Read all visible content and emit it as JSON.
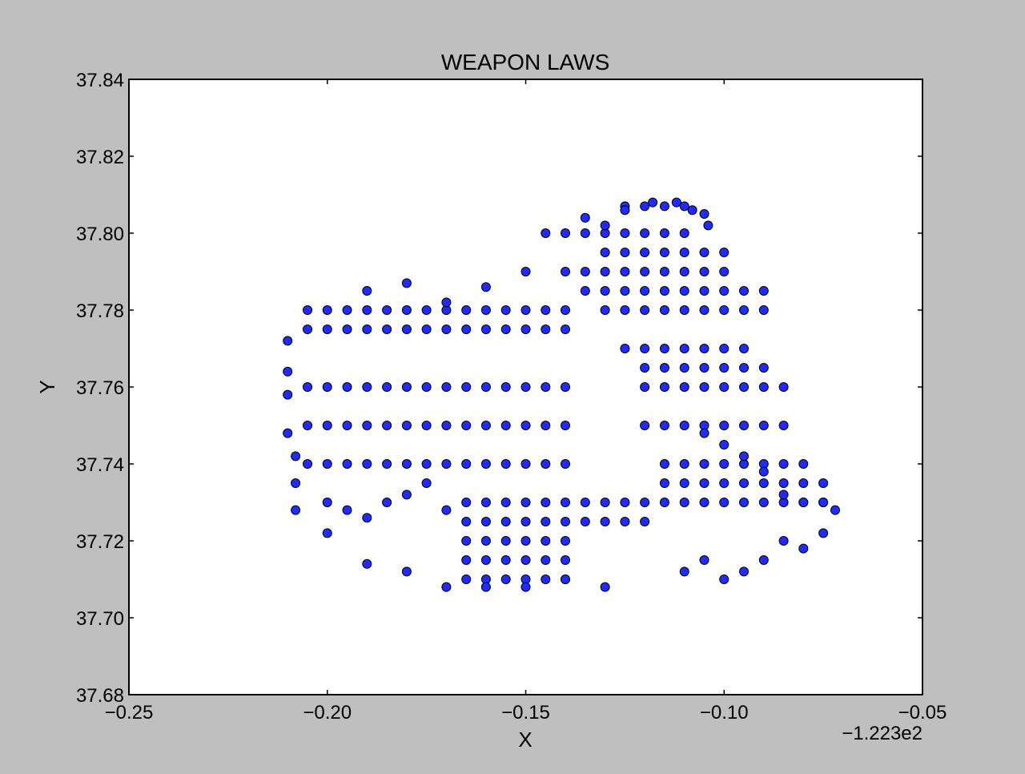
{
  "chart_data": {
    "type": "scatter",
    "title": "WEAPON LAWS",
    "xlabel": "X",
    "ylabel": "Y",
    "x_offset_label": "−1.223e2",
    "x_offset": -122.3,
    "xlim": [
      -0.25,
      -0.05
    ],
    "ylim": [
      37.68,
      37.84
    ],
    "x_ticks": [
      -0.25,
      -0.2,
      -0.15,
      -0.1,
      -0.05
    ],
    "x_tick_labels": [
      "−0.25",
      "−0.20",
      "−0.15",
      "−0.10",
      "−0.05"
    ],
    "y_ticks": [
      37.68,
      37.7,
      37.72,
      37.74,
      37.76,
      37.78,
      37.8,
      37.82,
      37.84
    ],
    "y_tick_labels": [
      "37.68",
      "37.70",
      "37.72",
      "37.74",
      "37.76",
      "37.78",
      "37.80",
      "37.82",
      "37.84"
    ],
    "grid": false,
    "marker_color": "#1f2bff",
    "marker_edge_color": "#000000",
    "series": [
      {
        "x": [
          -0.205,
          -0.2,
          -0.195,
          -0.19,
          -0.185,
          -0.18,
          -0.175,
          -0.17,
          -0.165,
          -0.16,
          -0.155,
          -0.15,
          -0.145,
          -0.14,
          -0.205,
          -0.2,
          -0.195,
          -0.19,
          -0.185,
          -0.18,
          -0.175,
          -0.17,
          -0.165,
          -0.16,
          -0.155,
          -0.15,
          -0.145,
          -0.14,
          -0.205,
          -0.2,
          -0.195,
          -0.19,
          -0.185,
          -0.18,
          -0.175,
          -0.17,
          -0.165,
          -0.16,
          -0.155,
          -0.15,
          -0.145,
          -0.14,
          -0.205,
          -0.2,
          -0.195,
          -0.19,
          -0.185,
          -0.18,
          -0.175,
          -0.17,
          -0.165,
          -0.16,
          -0.155,
          -0.15,
          -0.145,
          -0.14,
          -0.205,
          -0.2,
          -0.195,
          -0.19,
          -0.185,
          -0.18,
          -0.175,
          -0.17,
          -0.165,
          -0.16,
          -0.155,
          -0.15,
          -0.145,
          -0.14,
          -0.21,
          -0.21,
          -0.21,
          -0.21,
          -0.208,
          -0.208,
          -0.208,
          -0.2,
          -0.195,
          -0.19,
          -0.185,
          -0.18,
          -0.175,
          -0.17,
          -0.165,
          -0.16,
          -0.155,
          -0.15,
          -0.145,
          -0.14,
          -0.165,
          -0.16,
          -0.155,
          -0.15,
          -0.145,
          -0.14,
          -0.165,
          -0.16,
          -0.155,
          -0.15,
          -0.145,
          -0.14,
          -0.165,
          -0.16,
          -0.155,
          -0.15,
          -0.145,
          -0.14,
          -0.135,
          -0.13,
          -0.125,
          -0.12,
          -0.165,
          -0.16,
          -0.155,
          -0.15,
          -0.145,
          -0.14,
          -0.135,
          -0.13,
          -0.125,
          -0.12,
          -0.115,
          -0.11,
          -0.105,
          -0.1,
          -0.095,
          -0.09,
          -0.085,
          -0.08,
          -0.075,
          -0.115,
          -0.11,
          -0.105,
          -0.1,
          -0.095,
          -0.09,
          -0.085,
          -0.08,
          -0.075,
          -0.115,
          -0.11,
          -0.105,
          -0.1,
          -0.095,
          -0.09,
          -0.085,
          -0.08,
          -0.12,
          -0.115,
          -0.11,
          -0.105,
          -0.1,
          -0.095,
          -0.09,
          -0.085,
          -0.12,
          -0.115,
          -0.11,
          -0.105,
          -0.1,
          -0.095,
          -0.09,
          -0.085,
          -0.12,
          -0.115,
          -0.11,
          -0.105,
          -0.1,
          -0.095,
          -0.09,
          -0.125,
          -0.12,
          -0.115,
          -0.11,
          -0.105,
          -0.1,
          -0.095,
          -0.13,
          -0.125,
          -0.12,
          -0.115,
          -0.11,
          -0.105,
          -0.1,
          -0.095,
          -0.09,
          -0.135,
          -0.13,
          -0.125,
          -0.12,
          -0.115,
          -0.11,
          -0.105,
          -0.1,
          -0.095,
          -0.09,
          -0.14,
          -0.135,
          -0.13,
          -0.125,
          -0.12,
          -0.115,
          -0.11,
          -0.105,
          -0.1,
          -0.14,
          -0.135,
          -0.13,
          -0.125,
          -0.12,
          -0.115,
          -0.11,
          -0.125,
          -0.12,
          -0.115,
          -0.11,
          -0.105,
          -0.13,
          -0.125,
          -0.12,
          -0.115,
          -0.11,
          -0.105,
          -0.1,
          -0.085,
          -0.08,
          -0.075,
          -0.072,
          -0.09,
          -0.095,
          -0.1,
          -0.105,
          -0.085,
          -0.08,
          -0.075,
          -0.09,
          -0.095,
          -0.1,
          -0.105,
          -0.11,
          -0.2,
          -0.19,
          -0.18,
          -0.17,
          -0.16,
          -0.15,
          -0.14,
          -0.13,
          -0.19,
          -0.18,
          -0.17,
          -0.16,
          -0.15,
          -0.145,
          -0.135,
          -0.13,
          -0.125,
          -0.118,
          -0.112,
          -0.108,
          -0.104
        ],
        "y": [
          37.78,
          37.78,
          37.78,
          37.78,
          37.78,
          37.78,
          37.78,
          37.78,
          37.78,
          37.78,
          37.78,
          37.78,
          37.78,
          37.78,
          37.775,
          37.775,
          37.775,
          37.775,
          37.775,
          37.775,
          37.775,
          37.775,
          37.775,
          37.775,
          37.775,
          37.775,
          37.775,
          37.775,
          37.76,
          37.76,
          37.76,
          37.76,
          37.76,
          37.76,
          37.76,
          37.76,
          37.76,
          37.76,
          37.76,
          37.76,
          37.76,
          37.76,
          37.75,
          37.75,
          37.75,
          37.75,
          37.75,
          37.75,
          37.75,
          37.75,
          37.75,
          37.75,
          37.75,
          37.75,
          37.75,
          37.75,
          37.74,
          37.74,
          37.74,
          37.74,
          37.74,
          37.74,
          37.74,
          37.74,
          37.74,
          37.74,
          37.74,
          37.74,
          37.74,
          37.74,
          37.772,
          37.764,
          37.758,
          37.748,
          37.742,
          37.735,
          37.728,
          37.73,
          37.728,
          37.726,
          37.73,
          37.732,
          37.735,
          37.728,
          37.72,
          37.72,
          37.72,
          37.72,
          37.72,
          37.72,
          37.715,
          37.715,
          37.715,
          37.715,
          37.715,
          37.715,
          37.71,
          37.71,
          37.71,
          37.71,
          37.71,
          37.71,
          37.725,
          37.725,
          37.725,
          37.725,
          37.725,
          37.725,
          37.725,
          37.725,
          37.725,
          37.725,
          37.73,
          37.73,
          37.73,
          37.73,
          37.73,
          37.73,
          37.73,
          37.73,
          37.73,
          37.73,
          37.735,
          37.735,
          37.735,
          37.735,
          37.735,
          37.735,
          37.735,
          37.735,
          37.735,
          37.73,
          37.73,
          37.73,
          37.73,
          37.73,
          37.73,
          37.73,
          37.73,
          37.73,
          37.74,
          37.74,
          37.74,
          37.74,
          37.74,
          37.74,
          37.74,
          37.74,
          37.75,
          37.75,
          37.75,
          37.75,
          37.75,
          37.75,
          37.75,
          37.75,
          37.76,
          37.76,
          37.76,
          37.76,
          37.76,
          37.76,
          37.76,
          37.76,
          37.765,
          37.765,
          37.765,
          37.765,
          37.765,
          37.765,
          37.765,
          37.77,
          37.77,
          37.77,
          37.77,
          37.77,
          37.77,
          37.77,
          37.78,
          37.78,
          37.78,
          37.78,
          37.78,
          37.78,
          37.78,
          37.78,
          37.78,
          37.785,
          37.785,
          37.785,
          37.785,
          37.785,
          37.785,
          37.785,
          37.785,
          37.785,
          37.785,
          37.79,
          37.79,
          37.79,
          37.79,
          37.79,
          37.79,
          37.79,
          37.79,
          37.79,
          37.8,
          37.8,
          37.8,
          37.8,
          37.8,
          37.8,
          37.8,
          37.807,
          37.807,
          37.807,
          37.807,
          37.805,
          37.795,
          37.795,
          37.795,
          37.795,
          37.795,
          37.795,
          37.795,
          37.732,
          37.73,
          37.73,
          37.728,
          37.738,
          37.742,
          37.745,
          37.748,
          37.72,
          37.718,
          37.722,
          37.715,
          37.712,
          37.71,
          37.715,
          37.712,
          37.722,
          37.714,
          37.712,
          37.708,
          37.708,
          37.708,
          37.71,
          37.708,
          37.785,
          37.787,
          37.782,
          37.786,
          37.79,
          37.8,
          37.804,
          37.802,
          37.806,
          37.808,
          37.808,
          37.806,
          37.802
        ]
      }
    ]
  }
}
